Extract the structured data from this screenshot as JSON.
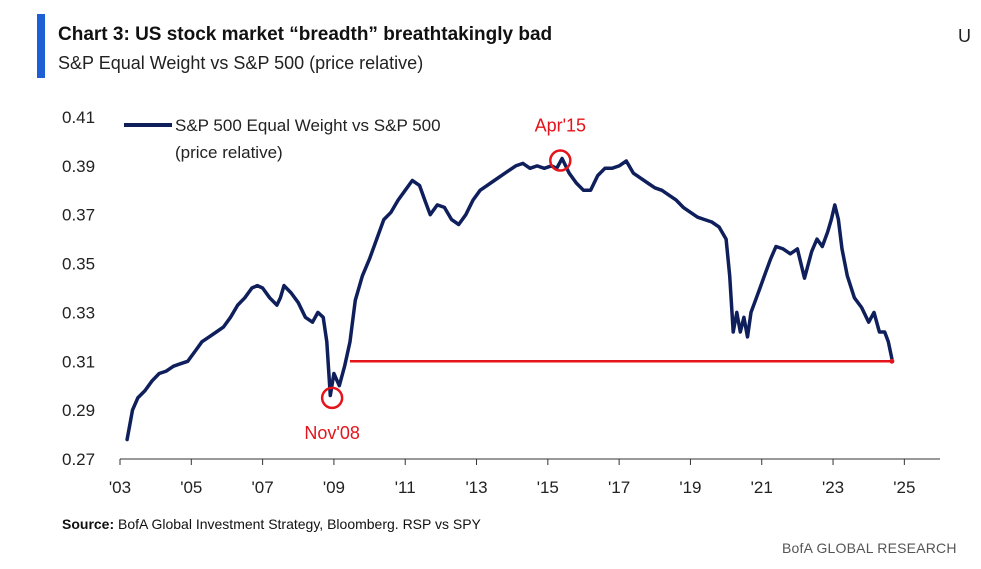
{
  "header": {
    "title": "Chart 3: US stock market “breadth” breathtakingly bad",
    "subtitle": "S&P Equal Weight vs S&P 500 (price relative)",
    "corner_letter": "U"
  },
  "footer": {
    "source_label": "Source:",
    "source_text": " BofA Global Investment Strategy, Bloomberg. RSP vs SPY",
    "brand": "BofA GLOBAL RESEARCH"
  },
  "colors": {
    "series": "#0f1f5c",
    "annotation": "#e4141b",
    "accent_bar": "#1f5fd6",
    "axis": "#333333"
  },
  "chart_data": {
    "type": "line",
    "title": "Chart 3: US stock market “breadth” breathtakingly bad",
    "subtitle": "S&P Equal Weight vs S&P 500 (price relative)",
    "xlim": [
      2003.0,
      2026.0
    ],
    "ylim": [
      0.27,
      0.41
    ],
    "x_ticks": [
      2003,
      2005,
      2007,
      2009,
      2011,
      2013,
      2015,
      2017,
      2019,
      2021,
      2023,
      2025
    ],
    "x_tick_labels": [
      "'03",
      "'05",
      "'07",
      "'09",
      "'11",
      "'13",
      "'15",
      "'17",
      "'19",
      "'21",
      "'23",
      "'25"
    ],
    "y_ticks": [
      0.27,
      0.29,
      0.31,
      0.33,
      0.35,
      0.37,
      0.39,
      0.41
    ],
    "y_tick_labels": [
      "0.27",
      "0.29",
      "0.31",
      "0.33",
      "0.35",
      "0.37",
      "0.39",
      "0.41"
    ],
    "legend": {
      "position": "top-left",
      "label_line1": "S&P 500 Equal Weight vs S&P 500",
      "label_line2": "(price relative)"
    },
    "series": [
      {
        "name": "S&P 500 Equal Weight vs S&P 500 (price relative)",
        "x": [
          2003.2,
          2003.35,
          2003.5,
          2003.7,
          2003.9,
          2004.1,
          2004.3,
          2004.5,
          2004.7,
          2004.9,
          2005.1,
          2005.3,
          2005.5,
          2005.7,
          2005.9,
          2006.1,
          2006.3,
          2006.5,
          2006.7,
          2006.85,
          2007.0,
          2007.2,
          2007.4,
          2007.5,
          2007.6,
          2007.8,
          2008.0,
          2008.2,
          2008.4,
          2008.55,
          2008.7,
          2008.8,
          2008.9,
          2009.0,
          2009.15,
          2009.3,
          2009.45,
          2009.6,
          2009.8,
          2010.0,
          2010.2,
          2010.4,
          2010.6,
          2010.8,
          2011.0,
          2011.2,
          2011.4,
          2011.55,
          2011.7,
          2011.9,
          2012.1,
          2012.3,
          2012.5,
          2012.7,
          2012.9,
          2013.1,
          2013.3,
          2013.5,
          2013.7,
          2013.9,
          2014.1,
          2014.3,
          2014.5,
          2014.7,
          2014.9,
          2015.1,
          2015.25,
          2015.4,
          2015.6,
          2015.8,
          2016.0,
          2016.2,
          2016.4,
          2016.6,
          2016.8,
          2017.0,
          2017.2,
          2017.4,
          2017.6,
          2017.8,
          2018.0,
          2018.2,
          2018.4,
          2018.6,
          2018.8,
          2019.0,
          2019.2,
          2019.4,
          2019.6,
          2019.8,
          2020.0,
          2020.1,
          2020.2,
          2020.3,
          2020.4,
          2020.5,
          2020.6,
          2020.7,
          2020.8,
          2020.95,
          2021.1,
          2021.25,
          2021.4,
          2021.6,
          2021.8,
          2022.0,
          2022.2,
          2022.4,
          2022.55,
          2022.7,
          2022.85,
          2022.95,
          2023.05,
          2023.15,
          2023.25,
          2023.4,
          2023.6,
          2023.8,
          2024.0,
          2024.15,
          2024.3,
          2024.45,
          2024.55,
          2024.65
        ],
        "values": [
          0.278,
          0.29,
          0.295,
          0.298,
          0.302,
          0.305,
          0.306,
          0.308,
          0.309,
          0.31,
          0.314,
          0.318,
          0.32,
          0.322,
          0.324,
          0.328,
          0.333,
          0.336,
          0.34,
          0.341,
          0.34,
          0.336,
          0.333,
          0.336,
          0.341,
          0.338,
          0.334,
          0.328,
          0.326,
          0.33,
          0.328,
          0.318,
          0.296,
          0.305,
          0.3,
          0.308,
          0.318,
          0.335,
          0.345,
          0.352,
          0.36,
          0.368,
          0.371,
          0.376,
          0.38,
          0.384,
          0.382,
          0.376,
          0.37,
          0.374,
          0.373,
          0.368,
          0.366,
          0.37,
          0.376,
          0.38,
          0.382,
          0.384,
          0.386,
          0.388,
          0.39,
          0.391,
          0.389,
          0.39,
          0.389,
          0.39,
          0.389,
          0.393,
          0.387,
          0.383,
          0.38,
          0.38,
          0.386,
          0.389,
          0.389,
          0.39,
          0.392,
          0.387,
          0.385,
          0.383,
          0.381,
          0.38,
          0.378,
          0.376,
          0.373,
          0.371,
          0.369,
          0.368,
          0.367,
          0.365,
          0.36,
          0.345,
          0.322,
          0.33,
          0.322,
          0.328,
          0.32,
          0.33,
          0.334,
          0.34,
          0.346,
          0.352,
          0.357,
          0.356,
          0.354,
          0.356,
          0.344,
          0.355,
          0.36,
          0.357,
          0.363,
          0.368,
          0.374,
          0.368,
          0.356,
          0.345,
          0.336,
          0.332,
          0.326,
          0.33,
          0.322,
          0.322,
          0.318,
          0.311
        ]
      }
    ],
    "reference_line": {
      "from_x": 2009.45,
      "to_x": 2024.65,
      "y": 0.31
    },
    "annotations": [
      {
        "label": "Nov'08",
        "x": 2008.95,
        "y": 0.295,
        "marker": "circle",
        "label_position": "below"
      },
      {
        "label": "Apr'15",
        "x": 2015.35,
        "y": 0.393,
        "marker": "circle",
        "label_position": "above"
      }
    ],
    "grid": false
  }
}
